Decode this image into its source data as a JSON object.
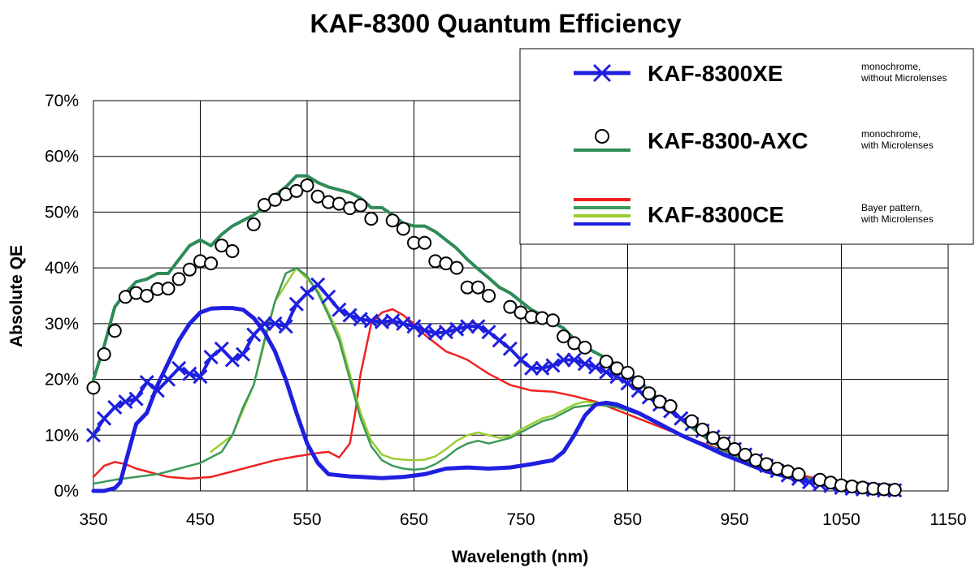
{
  "chart_data": {
    "type": "line",
    "title": "KAF-8300 Quantum Efficiency",
    "xlabel": "Wavelength (nm)",
    "ylabel": "Absolute QE",
    "xlim": [
      350,
      1150
    ],
    "ylim": [
      0,
      0.7
    ],
    "x_ticks": [
      "350",
      "450",
      "550",
      "650",
      "750",
      "850",
      "950",
      "1050",
      "1150"
    ],
    "y_ticks": [
      "0%",
      "10%",
      "20%",
      "30%",
      "40%",
      "50%",
      "60%",
      "70%"
    ],
    "grid": true,
    "legend_position": "top-right",
    "legend": [
      {
        "key": "xe",
        "name": "KAF-8300XE",
        "note_lines": [
          "monochrome,",
          "without Microlenses"
        ],
        "swatch": "blue-line-x-markers"
      },
      {
        "key": "axc",
        "name": "KAF-8300-AXC",
        "note_lines": [
          "monochrome,",
          "with Microlenses"
        ],
        "swatch": "circle-marker-over-green-line"
      },
      {
        "key": "ce",
        "name": "KAF-8300CE",
        "note_lines": [
          "Bayer pattern,",
          "with Microlenses"
        ],
        "swatch": "red-green-yellowgreen-blue-lines"
      }
    ],
    "series": [
      {
        "key": "axc_circles",
        "legend": "axc",
        "color": "#000000",
        "style": "circles",
        "x": [
          350,
          360,
          370,
          380,
          390,
          400,
          410,
          420,
          430,
          440,
          450,
          460,
          470,
          480,
          500,
          510,
          520,
          530,
          540,
          550,
          560,
          570,
          580,
          590,
          600,
          610,
          630,
          640,
          650,
          660,
          670,
          680,
          690,
          700,
          710,
          720,
          740,
          750,
          760,
          770,
          780,
          790,
          800,
          810,
          830,
          840,
          850,
          860,
          870,
          880,
          890,
          910,
          920,
          930,
          940,
          950,
          960,
          970,
          980,
          990,
          1000,
          1010,
          1030,
          1040,
          1050,
          1060,
          1070,
          1080,
          1090,
          1100
        ],
        "y": [
          0.185,
          0.245,
          0.287,
          0.348,
          0.355,
          0.35,
          0.362,
          0.363,
          0.38,
          0.397,
          0.412,
          0.408,
          0.44,
          0.43,
          0.478,
          0.513,
          0.522,
          0.532,
          0.538,
          0.548,
          0.528,
          0.518,
          0.515,
          0.507,
          0.512,
          0.488,
          0.485,
          0.47,
          0.445,
          0.445,
          0.412,
          0.408,
          0.4,
          0.365,
          0.365,
          0.35,
          0.33,
          0.32,
          0.312,
          0.31,
          0.306,
          0.277,
          0.265,
          0.257,
          0.232,
          0.22,
          0.212,
          0.195,
          0.175,
          0.16,
          0.152,
          0.125,
          0.11,
          0.095,
          0.085,
          0.075,
          0.065,
          0.055,
          0.048,
          0.04,
          0.035,
          0.03,
          0.02,
          0.015,
          0.01,
          0.008,
          0.006,
          0.004,
          0.003,
          0.002
        ]
      },
      {
        "key": "axc_line",
        "legend": "axc",
        "color": "#2e8b57",
        "style": "line",
        "x": [
          350,
          355,
          360,
          370,
          380,
          390,
          400,
          410,
          420,
          430,
          440,
          450,
          460,
          470,
          480,
          490,
          500,
          510,
          520,
          530,
          540,
          550,
          560,
          570,
          580,
          590,
          600,
          610,
          620,
          630,
          640,
          650,
          660,
          670,
          680,
          690,
          700,
          710,
          720,
          730,
          740,
          750,
          760,
          770,
          780,
          790,
          800,
          810,
          820,
          830,
          840,
          850,
          860,
          870,
          880,
          890,
          900,
          920,
          940,
          960,
          980,
          1000,
          1020,
          1040,
          1060,
          1080,
          1100
        ],
        "y": [
          0.2,
          0.23,
          0.26,
          0.33,
          0.355,
          0.375,
          0.38,
          0.39,
          0.39,
          0.415,
          0.44,
          0.45,
          0.44,
          0.46,
          0.475,
          0.485,
          0.495,
          0.51,
          0.53,
          0.545,
          0.565,
          0.565,
          0.553,
          0.545,
          0.54,
          0.535,
          0.525,
          0.508,
          0.508,
          0.495,
          0.48,
          0.475,
          0.475,
          0.465,
          0.45,
          0.435,
          0.415,
          0.398,
          0.382,
          0.365,
          0.355,
          0.34,
          0.325,
          0.315,
          0.302,
          0.292,
          0.272,
          0.258,
          0.248,
          0.238,
          0.225,
          0.213,
          0.197,
          0.18,
          0.163,
          0.148,
          0.128,
          0.1,
          0.075,
          0.055,
          0.04,
          0.027,
          0.017,
          0.01,
          0.006,
          0.003,
          0.001
        ]
      },
      {
        "key": "xe",
        "legend": "xe",
        "color": "#1f1fe0",
        "style": "line-x",
        "x": [
          350,
          360,
          370,
          380,
          390,
          400,
          410,
          420,
          430,
          440,
          450,
          460,
          470,
          480,
          490,
          500,
          510,
          520,
          530,
          540,
          550,
          560,
          570,
          580,
          590,
          600,
          610,
          620,
          630,
          640,
          650,
          660,
          670,
          680,
          690,
          700,
          710,
          720,
          730,
          740,
          750,
          760,
          770,
          780,
          790,
          800,
          810,
          820,
          830,
          840,
          850,
          860,
          870,
          880,
          890,
          900,
          910,
          920,
          930,
          940,
          950,
          960,
          970,
          980,
          990,
          1000,
          1010,
          1020,
          1030,
          1040,
          1050,
          1060,
          1070,
          1080,
          1090,
          1100
        ],
        "y": [
          0.1,
          0.13,
          0.15,
          0.16,
          0.165,
          0.195,
          0.18,
          0.2,
          0.22,
          0.21,
          0.205,
          0.24,
          0.255,
          0.235,
          0.245,
          0.28,
          0.3,
          0.3,
          0.295,
          0.335,
          0.355,
          0.37,
          0.348,
          0.325,
          0.315,
          0.308,
          0.305,
          0.303,
          0.305,
          0.3,
          0.295,
          0.288,
          0.283,
          0.285,
          0.29,
          0.295,
          0.295,
          0.285,
          0.27,
          0.255,
          0.235,
          0.22,
          0.22,
          0.225,
          0.235,
          0.235,
          0.228,
          0.222,
          0.213,
          0.205,
          0.193,
          0.18,
          0.168,
          0.155,
          0.143,
          0.13,
          0.12,
          0.108,
          0.097,
          0.086,
          0.075,
          0.065,
          0.055,
          0.045,
          0.036,
          0.028,
          0.022,
          0.016,
          0.012,
          0.009,
          0.006,
          0.004,
          0.003,
          0.002,
          0.001,
          0.001
        ]
      },
      {
        "key": "ce_blue",
        "legend": "ce",
        "color": "#1f1fe0",
        "style": "thick-line",
        "x": [
          350,
          360,
          370,
          375,
          380,
          390,
          400,
          410,
          420,
          430,
          440,
          450,
          460,
          470,
          480,
          490,
          500,
          510,
          520,
          530,
          540,
          550,
          560,
          570,
          580,
          590,
          600,
          620,
          640,
          660,
          680,
          700,
          720,
          740,
          760,
          780,
          790,
          800,
          810,
          820,
          830,
          840,
          860,
          880,
          900,
          920,
          940,
          960,
          980,
          1000,
          1020,
          1040,
          1060,
          1080,
          1100
        ],
        "y": [
          0.0,
          0.0,
          0.005,
          0.015,
          0.05,
          0.12,
          0.14,
          0.19,
          0.23,
          0.27,
          0.3,
          0.32,
          0.327,
          0.328,
          0.328,
          0.325,
          0.31,
          0.285,
          0.25,
          0.2,
          0.14,
          0.085,
          0.05,
          0.03,
          0.028,
          0.026,
          0.025,
          0.023,
          0.025,
          0.03,
          0.04,
          0.042,
          0.04,
          0.042,
          0.048,
          0.055,
          0.07,
          0.1,
          0.135,
          0.155,
          0.158,
          0.155,
          0.14,
          0.12,
          0.1,
          0.083,
          0.065,
          0.05,
          0.035,
          0.025,
          0.016,
          0.01,
          0.006,
          0.003,
          0.001
        ]
      },
      {
        "key": "ce_green",
        "legend": "ce",
        "color": "#3c9a5a",
        "style": "line",
        "x": [
          350,
          370,
          390,
          410,
          430,
          450,
          470,
          480,
          490,
          500,
          510,
          520,
          530,
          540,
          550,
          560,
          570,
          580,
          590,
          600,
          610,
          620,
          630,
          640,
          650,
          660,
          670,
          680,
          690,
          700,
          710,
          720,
          730,
          740,
          750,
          760,
          770,
          780,
          790,
          800,
          820,
          840,
          860,
          880,
          900,
          940,
          980,
          1020,
          1060,
          1100
        ],
        "y": [
          0.013,
          0.02,
          0.025,
          0.03,
          0.04,
          0.05,
          0.07,
          0.1,
          0.15,
          0.19,
          0.27,
          0.34,
          0.39,
          0.4,
          0.385,
          0.355,
          0.315,
          0.27,
          0.2,
          0.13,
          0.08,
          0.055,
          0.045,
          0.04,
          0.038,
          0.04,
          0.048,
          0.06,
          0.075,
          0.085,
          0.09,
          0.085,
          0.09,
          0.095,
          0.105,
          0.115,
          0.125,
          0.13,
          0.14,
          0.15,
          0.155,
          0.15,
          0.138,
          0.118,
          0.1,
          0.07,
          0.042,
          0.022,
          0.01,
          0.002
        ]
      },
      {
        "key": "ce_yellowgreen",
        "legend": "ce",
        "color": "#9acd32",
        "style": "line",
        "x": [
          460,
          480,
          500,
          520,
          540,
          560,
          580,
          600,
          610,
          620,
          630,
          640,
          650,
          660,
          670,
          680,
          690,
          700,
          710,
          720,
          730,
          740,
          750,
          760,
          770,
          780,
          790,
          800,
          810,
          820,
          840,
          860,
          880,
          900
        ],
        "y": [
          0.07,
          0.1,
          0.19,
          0.34,
          0.4,
          0.36,
          0.28,
          0.14,
          0.09,
          0.065,
          0.058,
          0.056,
          0.055,
          0.056,
          0.062,
          0.075,
          0.09,
          0.1,
          0.105,
          0.1,
          0.095,
          0.098,
          0.11,
          0.12,
          0.13,
          0.135,
          0.145,
          0.155,
          0.16,
          0.158,
          0.15,
          0.138,
          0.118,
          0.1
        ]
      },
      {
        "key": "ce_red",
        "legend": "ce",
        "color": "#ee2222",
        "style": "line",
        "x": [
          350,
          360,
          370,
          380,
          390,
          400,
          410,
          420,
          440,
          460,
          480,
          500,
          520,
          540,
          560,
          570,
          580,
          590,
          595,
          600,
          610,
          620,
          630,
          640,
          650,
          660,
          670,
          680,
          690,
          700,
          720,
          740,
          760,
          780,
          800,
          820,
          840,
          860,
          880,
          900,
          940,
          980,
          1020,
          1060,
          1100
        ],
        "y": [
          0.025,
          0.045,
          0.052,
          0.048,
          0.04,
          0.035,
          0.03,
          0.025,
          0.022,
          0.025,
          0.035,
          0.045,
          0.055,
          0.062,
          0.068,
          0.07,
          0.06,
          0.085,
          0.14,
          0.21,
          0.3,
          0.32,
          0.326,
          0.315,
          0.3,
          0.28,
          0.265,
          0.25,
          0.243,
          0.235,
          0.21,
          0.19,
          0.18,
          0.178,
          0.17,
          0.16,
          0.145,
          0.13,
          0.115,
          0.1,
          0.072,
          0.045,
          0.025,
          0.01,
          0.003
        ]
      }
    ]
  }
}
